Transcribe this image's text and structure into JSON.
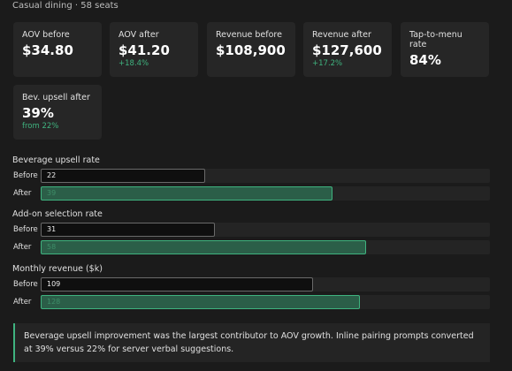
{
  "header": {
    "title": "Casual dining · 58 seats"
  },
  "cards": [
    {
      "label": "AOV before",
      "value": "$34.80"
    },
    {
      "label": "AOV after",
      "value": "$41.20",
      "delta": "+18.4%"
    },
    {
      "label": "Revenue before",
      "value": "$108,900"
    },
    {
      "label": "Revenue after",
      "value": "$127,600",
      "delta": "+17.2%"
    },
    {
      "label": "Tap-to-menu rate",
      "value": "84%"
    },
    {
      "label": "Bev. upsell after",
      "value": "39%",
      "delta": "from 22%"
    }
  ],
  "groups": [
    {
      "title": "Beverage upsell rate",
      "xlim": [
        0,
        60
      ],
      "rows": [
        {
          "label": "Before",
          "value": 22
        },
        {
          "label": "After",
          "value": 39
        }
      ]
    },
    {
      "title": "Add-on selection rate",
      "xlim": [
        0,
        80
      ],
      "rows": [
        {
          "label": "Before",
          "value": 31
        },
        {
          "label": "After",
          "value": 58
        }
      ]
    },
    {
      "title": "Monthly revenue ($k)",
      "xlim": [
        0,
        180
      ],
      "rows": [
        {
          "label": "Before",
          "value": 109
        },
        {
          "label": "After",
          "value": 128
        }
      ]
    }
  ],
  "note": {
    "text": "Beverage upsell improvement was the largest contributor to AOV growth. Inline pairing prompts converted at 39% versus 22% for server verbal suggestions."
  }
}
